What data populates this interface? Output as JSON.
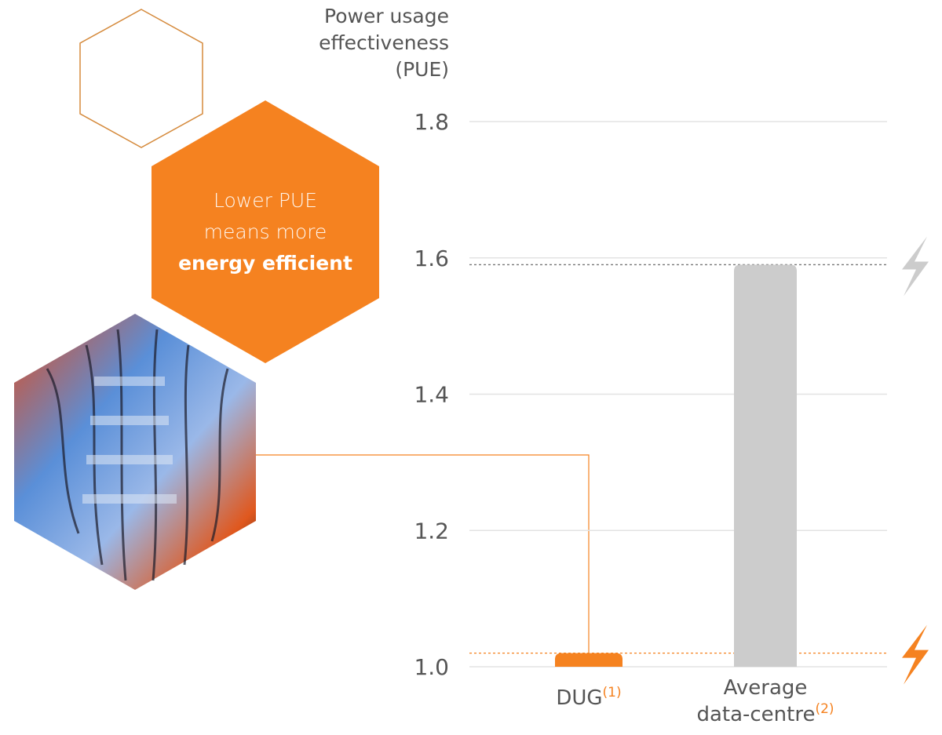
{
  "chart_data": {
    "type": "bar",
    "y_label": "Power usage effectiveness (PUE)",
    "annotation": "Lower PUE means more",
    "annotation_emphasis": "energy efficient",
    "categories": [
      "DUG",
      "Average data-centre"
    ],
    "category_notes": [
      "(1)",
      "(2)"
    ],
    "values": [
      1.02,
      1.59
    ],
    "colors": [
      "#f58220",
      "#cccccc"
    ],
    "ylim": [
      1.0,
      1.8
    ],
    "yticks": [
      {
        "value": 1,
        "label": "1.0"
      },
      1.2,
      1.4,
      1.6,
      1.8
    ],
    "grid": true
  }
}
